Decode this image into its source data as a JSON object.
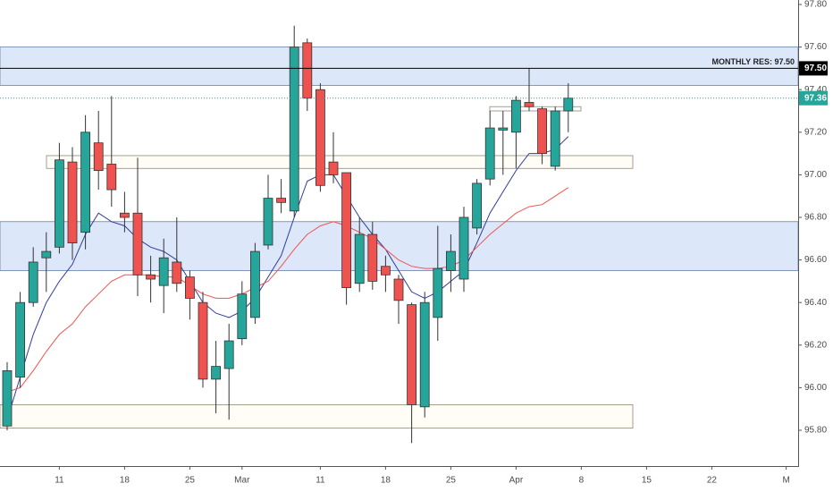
{
  "chart_data": {
    "type": "candlestick",
    "categories": [
      null,
      null,
      null,
      null,
      null,
      null,
      null,
      null,
      null,
      null,
      null,
      null,
      null,
      null,
      null,
      null,
      null,
      null,
      null,
      null,
      null,
      null,
      null,
      null,
      null,
      null,
      null,
      null,
      null,
      null,
      null,
      null,
      null,
      null,
      null,
      null,
      null,
      null,
      null,
      null,
      null,
      null,
      null,
      null
    ],
    "open": [
      95.82,
      96.05,
      96.4,
      96.61,
      96.66,
      97.06,
      96.73,
      97.15,
      97.05,
      96.82,
      96.82,
      96.53,
      96.48,
      96.59,
      96.52,
      96.4,
      96.04,
      96.09,
      96.23,
      96.33,
      96.67,
      96.89,
      96.83,
      97.62,
      97.4,
      97.06,
      97.01,
      96.49,
      96.72,
      96.57,
      96.51,
      96.39,
      95.91,
      96.33,
      96.55,
      96.51,
      96.75,
      96.98,
      97.21,
      97.2,
      97.34,
      97.31,
      97.04,
      97.3
    ],
    "high": [
      96.12,
      96.45,
      96.66,
      96.73,
      97.15,
      97.13,
      97.28,
      97.3,
      97.37,
      96.92,
      97.08,
      96.62,
      96.7,
      96.8,
      96.55,
      96.45,
      96.22,
      96.3,
      96.5,
      96.68,
      97.0,
      96.98,
      97.7,
      97.64,
      97.43,
      97.2,
      97.01,
      96.8,
      96.78,
      96.62,
      96.53,
      96.4,
      96.45,
      96.76,
      96.72,
      96.85,
      96.98,
      97.3,
      97.3,
      97.37,
      97.5,
      97.32,
      97.32,
      97.43
    ],
    "low": [
      95.8,
      96.0,
      96.38,
      96.45,
      96.63,
      96.6,
      96.65,
      96.93,
      96.85,
      96.73,
      96.43,
      96.4,
      96.35,
      96.45,
      96.32,
      96.0,
      95.88,
      95.85,
      96.2,
      96.3,
      96.65,
      96.82,
      96.8,
      97.3,
      96.92,
      96.96,
      96.39,
      96.45,
      96.46,
      96.45,
      96.3,
      95.74,
      95.86,
      96.22,
      96.45,
      96.45,
      96.72,
      96.95,
      97.0,
      97.03,
      97.3,
      97.05,
      97.02,
      97.2
    ],
    "close": [
      96.08,
      96.4,
      96.59,
      96.64,
      97.07,
      96.68,
      97.2,
      97.02,
      96.93,
      96.8,
      96.53,
      96.51,
      96.61,
      96.49,
      96.42,
      96.04,
      96.1,
      96.22,
      96.44,
      96.64,
      96.89,
      96.87,
      97.6,
      97.36,
      96.95,
      97.0,
      96.47,
      96.72,
      96.5,
      96.53,
      96.41,
      95.92,
      96.4,
      96.56,
      96.64,
      96.8,
      96.96,
      97.22,
      97.22,
      97.35,
      97.32,
      97.1,
      97.3,
      97.36
    ],
    "up_color": "#26a69a",
    "down_color": "#ef5350",
    "moving_averages": [
      {
        "color": "#2f3c9e",
        "values": [
          95.85,
          96.05,
          96.25,
          96.4,
          96.5,
          96.58,
          96.72,
          96.82,
          96.78,
          96.76,
          96.7,
          96.66,
          96.64,
          96.6,
          96.5,
          96.4,
          96.35,
          96.33,
          96.36,
          96.42,
          96.52,
          96.62,
          96.8,
          96.97,
          97.0,
          97.0,
          96.9,
          96.8,
          96.72,
          96.65,
          96.55,
          96.45,
          96.42,
          96.45,
          96.5,
          96.55,
          96.68,
          96.82,
          96.92,
          97.02,
          97.1,
          97.1,
          97.12,
          97.18
        ]
      },
      {
        "color": "#ef5350",
        "values": [
          95.98,
          96.0,
          96.08,
          96.17,
          96.25,
          96.3,
          96.38,
          96.44,
          96.5,
          96.53,
          96.53,
          96.53,
          96.52,
          96.52,
          96.48,
          96.44,
          96.42,
          96.42,
          96.44,
          96.47,
          96.5,
          96.57,
          96.65,
          96.72,
          96.76,
          96.78,
          96.76,
          96.73,
          96.7,
          96.65,
          96.6,
          96.57,
          96.56,
          96.56,
          96.57,
          96.6,
          96.66,
          96.72,
          96.77,
          96.82,
          96.85,
          96.86,
          96.9,
          96.94
        ]
      }
    ],
    "zones": [
      {
        "from": 97.42,
        "to": 97.6,
        "color": "#dde7fa"
      },
      {
        "from": 96.55,
        "to": 96.78,
        "color": "#dde7fa"
      },
      {
        "from": 97.03,
        "to": 97.09,
        "color": "#fffdf5"
      },
      {
        "from": 95.81,
        "to": 95.92,
        "color": "#fffdf5"
      },
      {
        "from": 97.3,
        "to": 97.32,
        "color": "#ffffff"
      }
    ],
    "price_lines": [
      {
        "value": 97.5,
        "text": "MONTHLY RES: 97.50",
        "axis_label": "97.50",
        "color": "#000000"
      },
      {
        "value": 97.36,
        "axis_label": "97.36",
        "color": "#26a69a"
      }
    ],
    "ylim": [
      95.7,
      97.85
    ],
    "yticks": [
      {
        "value": 95.8,
        "label": "95.80"
      },
      {
        "value": 96.0,
        "label": "96.00"
      },
      {
        "value": 96.2,
        "label": "96.20"
      },
      {
        "value": 96.4,
        "label": "96.40"
      },
      {
        "value": 96.6,
        "label": "96.60"
      },
      {
        "value": 96.8,
        "label": "96.80"
      },
      {
        "value": 97.0,
        "label": "97.00"
      },
      {
        "value": 97.2,
        "label": "97.20"
      },
      {
        "value": 97.4,
        "label": "97.40"
      },
      {
        "value": 97.6,
        "label": "97.60"
      },
      {
        "value": 97.8,
        "label": "97.80"
      }
    ],
    "xticks": [
      {
        "value": 4,
        "label": "11"
      },
      {
        "value": 9,
        "label": "18"
      },
      {
        "value": 14,
        "label": "25"
      },
      {
        "value": 18,
        "label": "Mar"
      },
      {
        "value": 24,
        "label": "11"
      },
      {
        "value": 29,
        "label": "18"
      },
      {
        "value": 34,
        "label": "25"
      },
      {
        "value": 39,
        "label": "Apr"
      },
      {
        "value": 44,
        "label": "8"
      },
      {
        "value": 49,
        "label": "15"
      },
      {
        "value": 54,
        "label": "22"
      },
      {
        "value": 59.7,
        "label": "M"
      }
    ]
  }
}
